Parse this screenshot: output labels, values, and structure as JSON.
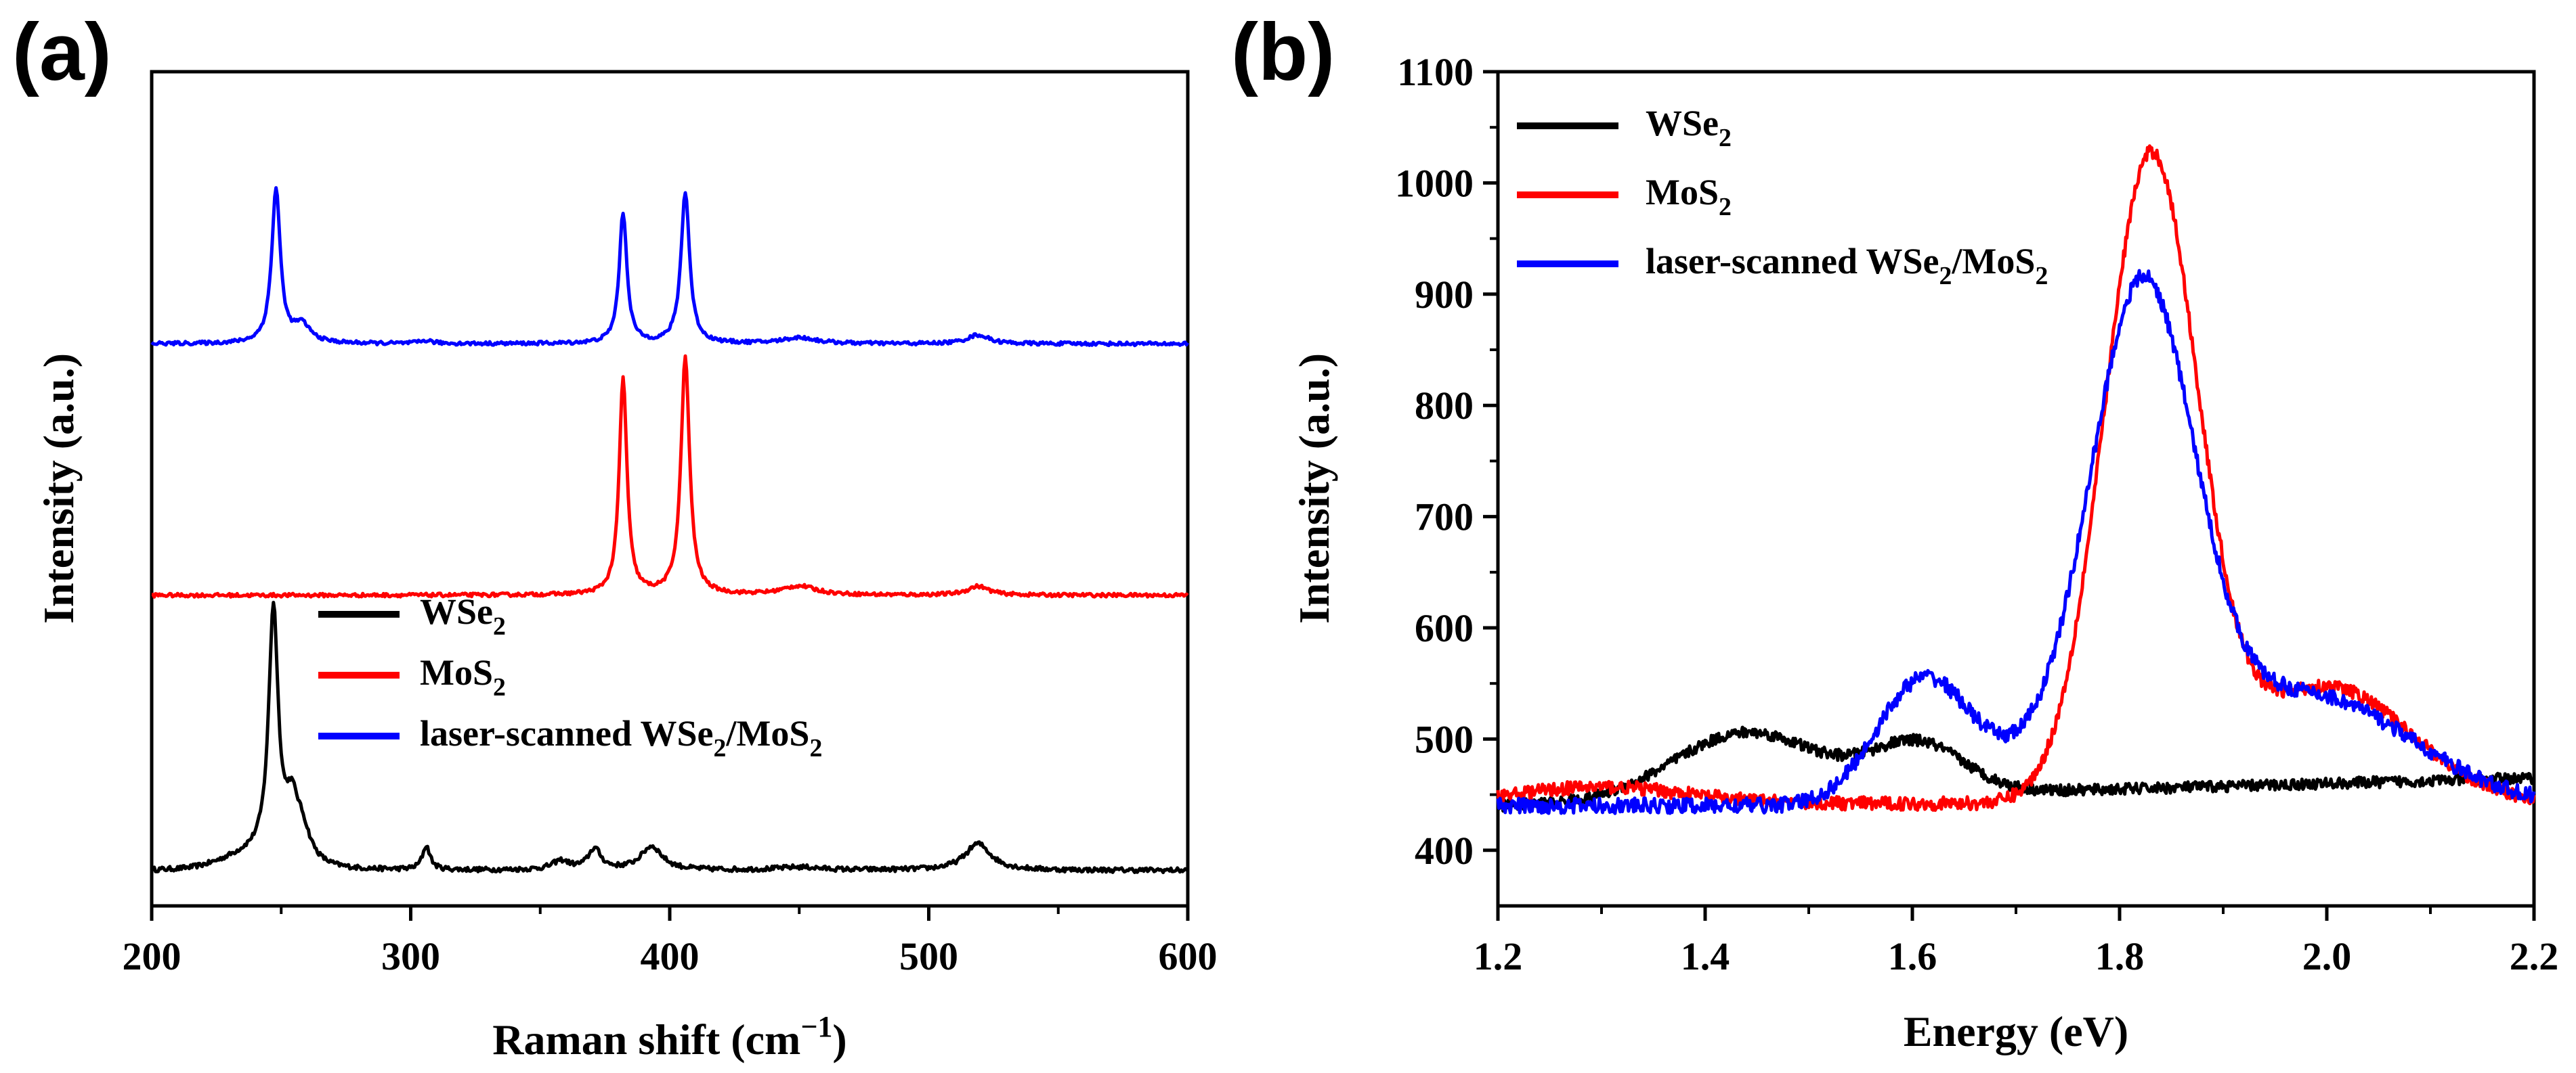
{
  "chart_data": [
    {
      "panel_label": "(a)",
      "type": "line",
      "xlabel_main": "Raman shift (cm",
      "xlabel_sup": "−1",
      "xlabel_end": ")",
      "ylabel": "Intensity (a.u.)",
      "xlim": [
        200,
        600
      ],
      "xticks": [
        "200",
        "300",
        "400",
        "500",
        "600"
      ],
      "yticks_shown": false,
      "legend_position": "center-right",
      "series": [
        {
          "name": "WSe2",
          "legend_parts": [
            "WSe",
            "2",
            ""
          ],
          "color": "#000000",
          "baseline": 0.0,
          "peaks": [
            [
              247,
              0.83,
              2.2
            ],
            [
              254,
              0.16,
              3.0
            ],
            [
              258,
              0.1,
              4.0
            ],
            [
              306,
              0.08,
              1.8
            ],
            [
              358,
              0.03,
              4.0
            ],
            [
              371,
              0.07,
              3.0
            ],
            [
              393,
              0.08,
              5.0
            ],
            [
              450,
              0.01,
              10.0
            ],
            [
              519,
              0.09,
              6.0
            ]
          ],
          "shoulder": [
            [
              240,
              0.05,
              12.0
            ]
          ],
          "noise": 0.008
        },
        {
          "name": "MoS2",
          "legend_parts": [
            "MoS",
            "2",
            ""
          ],
          "color": "#ff0000",
          "baseline": 0.93,
          "peaks": [
            [
              382,
              0.73,
              1.8
            ],
            [
              406,
              0.8,
              2.0
            ],
            [
              450,
              0.03,
              8.0
            ],
            [
              519,
              0.03,
              5.0
            ]
          ],
          "shoulder": [],
          "noise": 0.006
        },
        {
          "name": "laser-scanned WSe2/MoS2",
          "legend_parts": [
            "laser-scanned WSe",
            "2",
            "/MoS",
            "2",
            ""
          ],
          "color": "#0000ff",
          "baseline": 1.78,
          "peaks": [
            [
              248,
              0.52,
              2.0
            ],
            [
              258,
              0.06,
              4.0
            ],
            [
              306,
              0.01,
              3.0
            ],
            [
              382,
              0.44,
              1.8
            ],
            [
              406,
              0.51,
              2.0
            ],
            [
              450,
              0.02,
              8.0
            ],
            [
              519,
              0.03,
              5.0
            ]
          ],
          "shoulder": [],
          "noise": 0.006
        }
      ],
      "ylim_norm": [
        -0.12,
        2.7
      ]
    },
    {
      "panel_label": "(b)",
      "type": "line",
      "xlabel": "Energy (eV)",
      "ylabel": "Intensity (a.u.)",
      "xlim": [
        1.2,
        2.2
      ],
      "ylim": [
        350,
        1100
      ],
      "xticks": [
        "1.2",
        "1.4",
        "1.6",
        "1.8",
        "2.0",
        "2.2"
      ],
      "yticks": [
        "400",
        "500",
        "600",
        "700",
        "800",
        "900",
        "1000",
        "1100"
      ],
      "legend_position": "top-left",
      "series": [
        {
          "name": "WSe2",
          "legend_parts": [
            "WSe",
            "2",
            ""
          ],
          "color": "#000000",
          "baseline": 440,
          "slope": 25,
          "peaks": [
            [
              1.44,
              60,
              0.07
            ],
            [
              1.605,
              45,
              0.045
            ]
          ],
          "noise": 5
        },
        {
          "name": "MoS2",
          "legend_parts": [
            "MoS",
            "2",
            ""
          ],
          "color": "#ff0000",
          "baseline": 442,
          "slope": 0,
          "peaks": [
            [
              1.83,
              575,
              0.045
            ],
            [
              2.0,
              105,
              0.08
            ],
            [
              1.3,
              15,
              0.08
            ]
          ],
          "noise": 6
        },
        {
          "name": "laser-scanned WSe2/MoS2",
          "legend_parts": [
            "laser-scanned WSe",
            "2",
            "/MoS",
            "2",
            ""
          ],
          "color": "#0000ff",
          "baseline": 440,
          "slope": 0,
          "peaks": [
            [
              1.822,
              440,
              0.05
            ],
            [
              1.61,
              110,
              0.045
            ],
            [
              1.98,
              100,
              0.1
            ],
            [
              1.72,
              30,
              0.06
            ]
          ],
          "noise": 7
        }
      ]
    }
  ]
}
